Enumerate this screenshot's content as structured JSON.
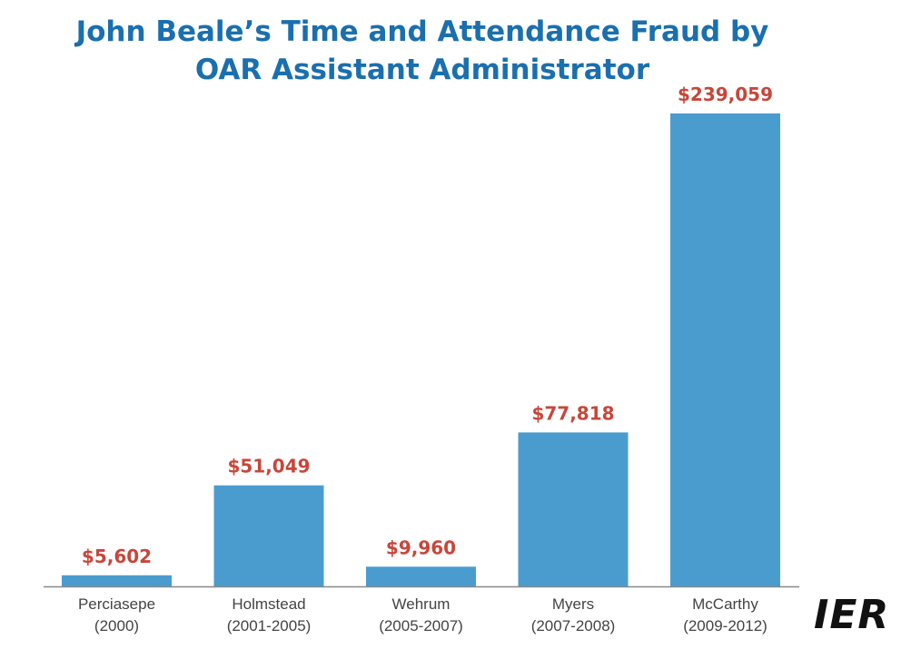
{
  "chart_data": {
    "type": "bar",
    "title": "John Beale’s Time and Attendance Fraud by OAR Assistant Administrator",
    "title_lines": [
      "John Beale’s Time and Attendance Fraud by",
      "OAR Assistant Administrator"
    ],
    "categories": [
      [
        "Perciasepe",
        "(2000)"
      ],
      [
        "Holmstead",
        "(2001-2005)"
      ],
      [
        "Wehrum",
        "(2005-2007)"
      ],
      [
        "Myers",
        "(2007-2008)"
      ],
      [
        "McCarthy",
        "(2009-2012)"
      ]
    ],
    "values": [
      5602,
      51049,
      9960,
      77818,
      239059
    ],
    "value_labels": [
      "$5,602",
      "$51,049",
      "$9,960",
      "$77,818",
      "$239,059"
    ],
    "ylim": [
      0,
      239059
    ],
    "grid": false,
    "legend": "none"
  },
  "logo": {
    "text": "IER"
  },
  "colors": {
    "title": "#1a6fae",
    "bar": "#4a9ccf",
    "value_label": "#c8463a",
    "axis": "#888888",
    "category_label": "#444444"
  }
}
